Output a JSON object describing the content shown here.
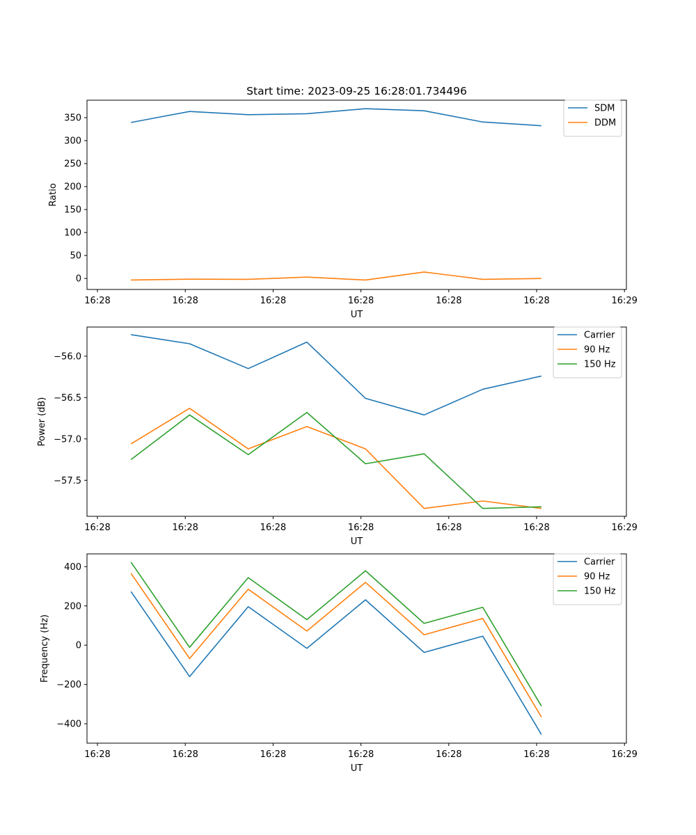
{
  "title": "Start time: 2023-09-25 16:28:01.734496",
  "chart_data": [
    {
      "type": "line",
      "xlabel": "UT",
      "ylabel": "Ratio",
      "x_tick_labels": [
        "16:28",
        "16:28",
        "16:28",
        "16:28",
        "16:28",
        "16:28",
        "16:29"
      ],
      "xlim": [
        -0.75,
        8.45
      ],
      "ylim": [
        -24,
        388
      ],
      "y_ticks": [
        0,
        50,
        100,
        150,
        200,
        250,
        300,
        350
      ],
      "y_tick_labels": [
        "0",
        "50",
        "100",
        "150",
        "200",
        "250",
        "300",
        "350"
      ],
      "x": [
        0,
        1,
        2,
        3,
        4,
        5,
        6,
        7
      ],
      "series": [
        {
          "name": "SDM",
          "color": "#1f77b4",
          "values": [
            339.5,
            363.5,
            356.5,
            358.5,
            369.5,
            365.0,
            340.5,
            332.5
          ]
        },
        {
          "name": "DDM",
          "color": "#ff7f0e",
          "values": [
            -3.5,
            -1.5,
            -2.0,
            3.0,
            -3.5,
            14.0,
            -2.0,
            0.0
          ]
        }
      ]
    },
    {
      "type": "line",
      "xlabel": "UT",
      "ylabel": "Power (dB)",
      "x_tick_labels": [
        "16:28",
        "16:28",
        "16:28",
        "16:28",
        "16:28",
        "16:28",
        "16:29"
      ],
      "xlim": [
        -0.75,
        8.45
      ],
      "ylim": [
        -57.935,
        -55.648
      ],
      "y_ticks": [
        -57.5,
        -57.0,
        -56.5,
        -56.0
      ],
      "y_tick_labels": [
        "−57.5",
        "−57.0",
        "−56.5",
        "−56.0"
      ],
      "x": [
        0,
        1,
        2,
        3,
        4,
        5,
        6,
        7
      ],
      "series": [
        {
          "name": "Carrier",
          "color": "#1f77b4",
          "values": [
            -55.74,
            -55.85,
            -56.15,
            -55.83,
            -56.51,
            -56.71,
            -56.4,
            -56.24
          ]
        },
        {
          "name": "90 Hz",
          "color": "#ff7f0e",
          "values": [
            -57.06,
            -56.63,
            -57.12,
            -56.85,
            -57.12,
            -57.84,
            -57.75,
            -57.84
          ]
        },
        {
          "name": "150 Hz",
          "color": "#2ca02c",
          "values": [
            -57.25,
            -56.71,
            -57.19,
            -56.68,
            -57.3,
            -57.18,
            -57.84,
            -57.82
          ]
        }
      ]
    },
    {
      "type": "line",
      "xlabel": "UT",
      "ylabel": "Frequency (Hz)",
      "x_tick_labels": [
        "16:28",
        "16:28",
        "16:28",
        "16:28",
        "16:28",
        "16:28",
        "16:29"
      ],
      "xlim": [
        -0.75,
        8.45
      ],
      "ylim": [
        -499,
        465
      ],
      "y_ticks": [
        -400,
        -200,
        0,
        200,
        400
      ],
      "y_tick_labels": [
        "−400",
        "−200",
        "0",
        "200",
        "400"
      ],
      "x": [
        0,
        1,
        2,
        3,
        4,
        5,
        6,
        7
      ],
      "series": [
        {
          "name": "Carrier",
          "color": "#1f77b4",
          "values": [
            273,
            -160,
            196,
            -16,
            231,
            -37,
            46,
            -455
          ]
        },
        {
          "name": "90 Hz",
          "color": "#ff7f0e",
          "values": [
            366,
            -68,
            285,
            72,
            320,
            53,
            136,
            -366
          ]
        },
        {
          "name": "150 Hz",
          "color": "#2ca02c",
          "values": [
            423,
            -11,
            344,
            130,
            379,
            111,
            193,
            -310
          ]
        }
      ]
    }
  ]
}
